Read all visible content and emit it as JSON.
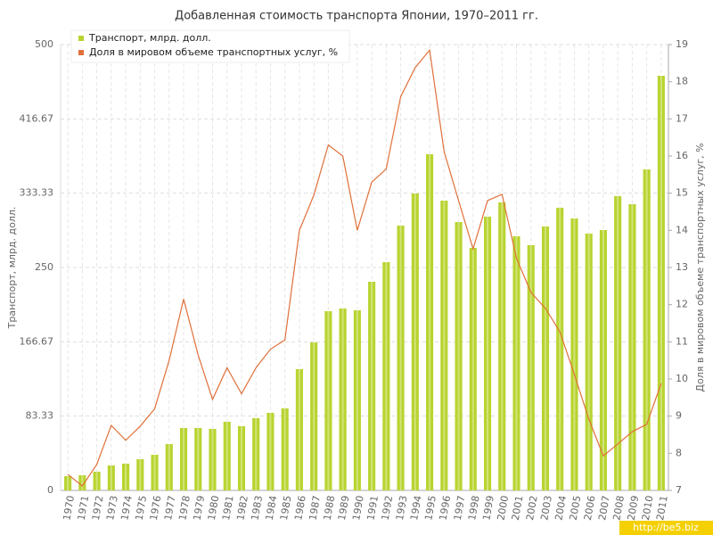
{
  "chart_data": {
    "type": "bar-line",
    "title": "Добавленная стоимость транспорта Японии, 1970–2011 гг.",
    "y_label": "Транспорт, млрд. долл.",
    "y2_label": "Доля в мировом объеме транспортных услуг, %",
    "watermark": "http://be5.biz",
    "categories": [
      "1970",
      "1971",
      "1972",
      "1973",
      "1974",
      "1975",
      "1976",
      "1977",
      "1978",
      "1979",
      "1980",
      "1981",
      "1982",
      "1983",
      "1984",
      "1985",
      "1986",
      "1987",
      "1988",
      "1989",
      "1990",
      "1991",
      "1992",
      "1993",
      "1994",
      "1995",
      "1996",
      "1997",
      "1998",
      "1999",
      "2000",
      "2001",
      "2002",
      "2003",
      "2004",
      "2005",
      "2006",
      "2007",
      "2008",
      "2009",
      "2010",
      "2011"
    ],
    "series": [
      {
        "name": "Транспорт, млрд. долл.",
        "color": "#b8d430",
        "type": "bar",
        "values": [
          16,
          17,
          21,
          28,
          30,
          35,
          40,
          52,
          70,
          70,
          69,
          77,
          72,
          81,
          87,
          92,
          136,
          166,
          201,
          204,
          202,
          234,
          256,
          297,
          333,
          377,
          325,
          301,
          272,
          307,
          323,
          285,
          275,
          296,
          317,
          305,
          288,
          292,
          330,
          321,
          360,
          465
        ]
      },
      {
        "name": "Доля в мировом объеме транспортных услуг, %",
        "color": "#e0703a",
        "type": "line",
        "axis": "y2",
        "values": [
          7.43,
          7.12,
          7.7,
          8.75,
          8.35,
          8.73,
          9.2,
          10.5,
          12.15,
          10.65,
          9.45,
          10.3,
          9.6,
          10.3,
          10.8,
          11.05,
          14.0,
          14.95,
          16.3,
          16.0,
          14.0,
          15.3,
          15.65,
          17.6,
          18.38,
          18.85,
          16.12,
          14.8,
          13.5,
          14.8,
          14.97,
          13.25,
          12.33,
          11.9,
          11.27,
          10.12,
          8.92,
          7.93,
          8.25,
          8.58,
          8.78,
          9.88
        ]
      }
    ],
    "ylim": [
      0,
      500
    ],
    "yticks": [
      0,
      83.33,
      166.67,
      250,
      333.33,
      416.67,
      500
    ],
    "y2lim": [
      7,
      19
    ],
    "y2ticks": [
      7,
      8,
      9,
      10,
      11,
      12,
      13,
      14,
      15,
      16,
      17,
      18,
      19
    ],
    "grid": true,
    "legend": "top-left"
  }
}
